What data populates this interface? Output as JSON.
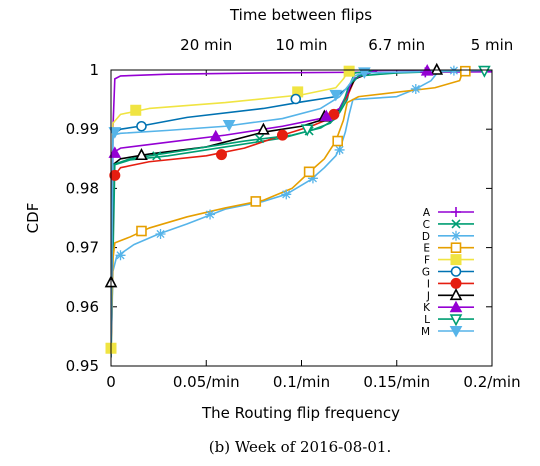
{
  "caption": "(b) Week of 2016-08-01.",
  "chart_data": {
    "type": "line",
    "xlabel": "The Routing flip frequency",
    "ylabel": "CDF",
    "x2label": "Time between flips",
    "xlim": [
      0,
      0.2
    ],
    "ylim": [
      0.95,
      1.0
    ],
    "xticks": [
      {
        "v": 0,
        "label": "0"
      },
      {
        "v": 0.05,
        "label": "0.05/min"
      },
      {
        "v": 0.1,
        "label": "0.1/min"
      },
      {
        "v": 0.15,
        "label": "0.15/min"
      },
      {
        "v": 0.2,
        "label": "0.2/min"
      }
    ],
    "yticks": [
      {
        "v": 0.95,
        "label": "0.95"
      },
      {
        "v": 0.96,
        "label": "0.96"
      },
      {
        "v": 0.97,
        "label": "0.97"
      },
      {
        "v": 0.98,
        "label": "0.98"
      },
      {
        "v": 0.99,
        "label": "0.99"
      },
      {
        "v": 1.0,
        "label": "1"
      }
    ],
    "x2ticks": [
      {
        "v": 0.05,
        "label": "20 min"
      },
      {
        "v": 0.1,
        "label": "10 min"
      },
      {
        "v": 0.15,
        "label": "6.7 min"
      },
      {
        "v": 0.2,
        "label": "5 min"
      }
    ],
    "grid": false,
    "legend_position": "bottom-right",
    "series": [
      {
        "name": "A",
        "color": "#9400d3",
        "marker": "plus",
        "points": [
          [
            0,
            0.9515
          ],
          [
            0.001,
            0.99
          ],
          [
            0.002,
            0.9985
          ],
          [
            0.005,
            0.999
          ],
          [
            0.03,
            0.9993
          ],
          [
            0.08,
            0.9995
          ],
          [
            0.12,
            0.9996
          ],
          [
            0.2,
            0.9997
          ]
        ],
        "markers": [
          [
            0.165,
            0.9996
          ]
        ]
      },
      {
        "name": "C",
        "color": "#009e73",
        "marker": "x",
        "points": [
          [
            0,
            0.9515
          ],
          [
            0.002,
            0.984
          ],
          [
            0.01,
            0.9848
          ],
          [
            0.03,
            0.9855
          ],
          [
            0.06,
            0.987
          ],
          [
            0.09,
            0.9885
          ],
          [
            0.105,
            0.9898
          ],
          [
            0.115,
            0.991
          ],
          [
            0.12,
            0.9928
          ],
          [
            0.124,
            0.995
          ],
          [
            0.126,
            0.998
          ],
          [
            0.128,
            0.9995
          ],
          [
            0.14,
            1.0
          ]
        ],
        "markers": [
          [
            0.024,
            0.9855
          ],
          [
            0.078,
            0.9884
          ],
          [
            0.104,
            0.9897
          ]
        ]
      },
      {
        "name": "D",
        "color": "#56b4e9",
        "marker": "star",
        "points": [
          [
            0,
            0.9515
          ],
          [
            0.001,
            0.966
          ],
          [
            0.003,
            0.9685
          ],
          [
            0.012,
            0.9705
          ],
          [
            0.025,
            0.9723
          ],
          [
            0.04,
            0.974
          ],
          [
            0.06,
            0.9765
          ],
          [
            0.08,
            0.9778
          ],
          [
            0.092,
            0.979
          ],
          [
            0.105,
            0.9815
          ],
          [
            0.112,
            0.9835
          ],
          [
            0.118,
            0.9855
          ],
          [
            0.121,
            0.9875
          ],
          [
            0.123,
            0.9895
          ],
          [
            0.125,
            0.9925
          ],
          [
            0.127,
            0.995
          ],
          [
            0.15,
            0.9955
          ],
          [
            0.16,
            0.9968
          ],
          [
            0.168,
            0.9982
          ],
          [
            0.172,
            0.9998
          ],
          [
            0.2,
            1.0
          ]
        ],
        "markers": [
          [
            0.005,
            0.9687
          ],
          [
            0.026,
            0.9723
          ],
          [
            0.052,
            0.9756
          ],
          [
            0.092,
            0.979
          ],
          [
            0.106,
            0.9817
          ],
          [
            0.12,
            0.9865
          ],
          [
            0.16,
            0.9968
          ],
          [
            0.18,
            0.9999
          ]
        ]
      },
      {
        "name": "E",
        "color": "#e69f00",
        "marker": "square",
        "points": [
          [
            0,
            0.9515
          ],
          [
            0.001,
            0.968
          ],
          [
            0.002,
            0.9708
          ],
          [
            0.01,
            0.9718
          ],
          [
            0.02,
            0.9733
          ],
          [
            0.04,
            0.9752
          ],
          [
            0.06,
            0.9767
          ],
          [
            0.08,
            0.978
          ],
          [
            0.095,
            0.98
          ],
          [
            0.105,
            0.983
          ],
          [
            0.112,
            0.985
          ],
          [
            0.118,
            0.988
          ],
          [
            0.122,
            0.9915
          ],
          [
            0.124,
            0.9945
          ],
          [
            0.13,
            0.9955
          ],
          [
            0.17,
            0.997
          ],
          [
            0.183,
            0.9982
          ],
          [
            0.185,
            1.0
          ]
        ],
        "markers": [
          [
            0.016,
            0.9728
          ],
          [
            0.076,
            0.9778
          ],
          [
            0.104,
            0.9828
          ],
          [
            0.119,
            0.988
          ],
          [
            0.186,
            0.9998
          ]
        ]
      },
      {
        "name": "F",
        "color": "#f0e442",
        "marker": "square-filled",
        "points": [
          [
            0,
            0.9515
          ],
          [
            0.001,
            0.991
          ],
          [
            0.005,
            0.9925
          ],
          [
            0.02,
            0.9935
          ],
          [
            0.06,
            0.9945
          ],
          [
            0.1,
            0.9958
          ],
          [
            0.118,
            0.997
          ],
          [
            0.122,
            0.9985
          ],
          [
            0.125,
            1.0
          ]
        ],
        "markers": [
          [
            0,
            0.953
          ],
          [
            0.013,
            0.9932
          ],
          [
            0.098,
            0.9963
          ],
          [
            0.125,
            0.9998
          ]
        ]
      },
      {
        "name": "G",
        "color": "#0072b2",
        "marker": "circle",
        "points": [
          [
            0,
            0.9515
          ],
          [
            0.001,
            0.989
          ],
          [
            0.005,
            0.99
          ],
          [
            0.015,
            0.9905
          ],
          [
            0.04,
            0.992
          ],
          [
            0.08,
            0.9935
          ],
          [
            0.1,
            0.9946
          ],
          [
            0.118,
            0.9955
          ],
          [
            0.125,
            0.9972
          ],
          [
            0.13,
            0.999
          ],
          [
            0.14,
            1.0
          ]
        ],
        "markers": [
          [
            0.016,
            0.9905
          ],
          [
            0.097,
            0.9951
          ]
        ]
      },
      {
        "name": "I",
        "color": "#e51e10",
        "marker": "circle-filled",
        "points": [
          [
            0,
            0.9515
          ],
          [
            0.001,
            0.9818
          ],
          [
            0.005,
            0.9835
          ],
          [
            0.02,
            0.9845
          ],
          [
            0.05,
            0.9855
          ],
          [
            0.07,
            0.9868
          ],
          [
            0.09,
            0.989
          ],
          [
            0.105,
            0.9905
          ],
          [
            0.115,
            0.9918
          ],
          [
            0.12,
            0.9935
          ],
          [
            0.124,
            0.9955
          ],
          [
            0.128,
            0.9985
          ],
          [
            0.14,
            1.0
          ]
        ],
        "markers": [
          [
            0.002,
            0.9822
          ],
          [
            0.058,
            0.9857
          ],
          [
            0.09,
            0.989
          ],
          [
            0.117,
            0.9925
          ]
        ]
      },
      {
        "name": "J",
        "color": "#000000",
        "marker": "triangle",
        "points": [
          [
            0,
            0.9515
          ],
          [
            0.001,
            0.984
          ],
          [
            0.005,
            0.985
          ],
          [
            0.02,
            0.9858
          ],
          [
            0.05,
            0.987
          ],
          [
            0.08,
            0.9895
          ],
          [
            0.1,
            0.9905
          ],
          [
            0.115,
            0.992
          ],
          [
            0.12,
            0.9935
          ],
          [
            0.124,
            0.996
          ],
          [
            0.128,
            0.9985
          ],
          [
            0.14,
            1.0
          ],
          [
            0.2,
            1.0
          ]
        ],
        "markers": [
          [
            0,
            0.9641
          ],
          [
            0.016,
            0.9856
          ],
          [
            0.08,
            0.9899
          ],
          [
            0.112,
            0.9921
          ],
          [
            0.171,
            1.0
          ]
        ]
      },
      {
        "name": "K",
        "color": "#9400d3",
        "marker": "triangle-filled",
        "points": [
          [
            0,
            0.9515
          ],
          [
            0.001,
            0.986
          ],
          [
            0.005,
            0.9868
          ],
          [
            0.03,
            0.9878
          ],
          [
            0.06,
            0.989
          ],
          [
            0.09,
            0.9905
          ],
          [
            0.11,
            0.9918
          ],
          [
            0.12,
            0.9935
          ],
          [
            0.124,
            0.996
          ],
          [
            0.127,
            0.9985
          ],
          [
            0.14,
            1.0
          ],
          [
            0.2,
            1.0
          ]
        ],
        "markers": [
          [
            0.002,
            0.986
          ],
          [
            0.055,
            0.9888
          ],
          [
            0.113,
            0.9922
          ],
          [
            0.166,
            0.9999
          ]
        ]
      },
      {
        "name": "L",
        "color": "#009e73",
        "marker": "triangle-down",
        "points": [
          [
            0,
            0.9515
          ],
          [
            0.001,
            0.984
          ],
          [
            0.01,
            0.985
          ],
          [
            0.04,
            0.9865
          ],
          [
            0.07,
            0.988
          ],
          [
            0.095,
            0.989
          ],
          [
            0.11,
            0.9902
          ],
          [
            0.118,
            0.9918
          ],
          [
            0.122,
            0.9945
          ],
          [
            0.125,
            0.9975
          ],
          [
            0.13,
            0.999
          ],
          [
            0.15,
            0.9995
          ],
          [
            0.2,
            1.0
          ]
        ],
        "markers": [
          [
            0.103,
            0.99
          ],
          [
            0.196,
            0.9999
          ]
        ]
      },
      {
        "name": "M",
        "color": "#56b4e9",
        "marker": "triangle-down-filled",
        "points": [
          [
            0,
            0.9515
          ],
          [
            0.001,
            0.989
          ],
          [
            0.005,
            0.9893
          ],
          [
            0.03,
            0.9898
          ],
          [
            0.06,
            0.9905
          ],
          [
            0.09,
            0.9918
          ],
          [
            0.11,
            0.9935
          ],
          [
            0.12,
            0.9955
          ],
          [
            0.125,
            0.9975
          ],
          [
            0.128,
            0.999
          ],
          [
            0.132,
            0.9995
          ],
          [
            0.2,
            1.0
          ]
        ],
        "markers": [
          [
            0.002,
            0.9895
          ],
          [
            0.062,
            0.9907
          ],
          [
            0.118,
            0.9958
          ],
          [
            0.133,
            0.9996
          ]
        ]
      }
    ]
  }
}
